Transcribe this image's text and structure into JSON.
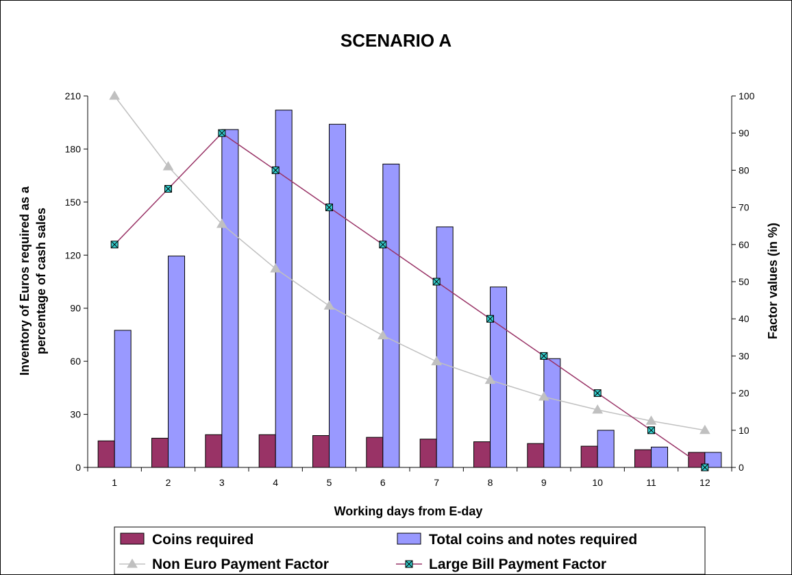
{
  "chart_data": {
    "type": "bar",
    "title": "SCENARIO A",
    "xlabel": "Working days from E-day",
    "ylabel_lines": [
      "Inventory of Euros required as a",
      "percentage of cash sales"
    ],
    "y2label": "Factor values (in %)",
    "categories": [
      "1",
      "2",
      "3",
      "4",
      "5",
      "6",
      "7",
      "8",
      "9",
      "10",
      "11",
      "12"
    ],
    "ylim": [
      0,
      210
    ],
    "yticks": [
      0,
      30,
      60,
      90,
      120,
      150,
      180,
      210
    ],
    "y2lim": [
      0,
      100
    ],
    "y2ticks": [
      0,
      10,
      20,
      30,
      40,
      50,
      60,
      70,
      80,
      90,
      100
    ],
    "grid": false,
    "legend_position": "bottom",
    "series": [
      {
        "name": "Coins required",
        "kind": "bar",
        "axis": "left",
        "color": "#993366",
        "values": [
          15,
          16.5,
          18.5,
          18.5,
          18,
          17,
          16,
          14.5,
          13.5,
          12,
          10,
          8.5
        ]
      },
      {
        "name": "Total coins and notes required",
        "kind": "bar",
        "axis": "left",
        "color": "#9999ff",
        "values": [
          77.5,
          119.5,
          191,
          202,
          194,
          171.5,
          136,
          102,
          61.5,
          21,
          11.5,
          8.5
        ]
      },
      {
        "name": "Non Euro Payment Factor",
        "kind": "line",
        "axis": "right",
        "color": "#c0c0c0",
        "marker": "triangle",
        "values": [
          100,
          81,
          65.5,
          53.5,
          43.5,
          35.5,
          28.5,
          23.5,
          19,
          15.5,
          12.5,
          10
        ]
      },
      {
        "name": "Large Bill Payment Factor",
        "kind": "line",
        "axis": "right",
        "color": "#993366",
        "marker": "square-x",
        "marker_fill": "#33cccc",
        "values": [
          60,
          75,
          90,
          80,
          70,
          60,
          50,
          40,
          30,
          20,
          10,
          0
        ]
      }
    ]
  }
}
